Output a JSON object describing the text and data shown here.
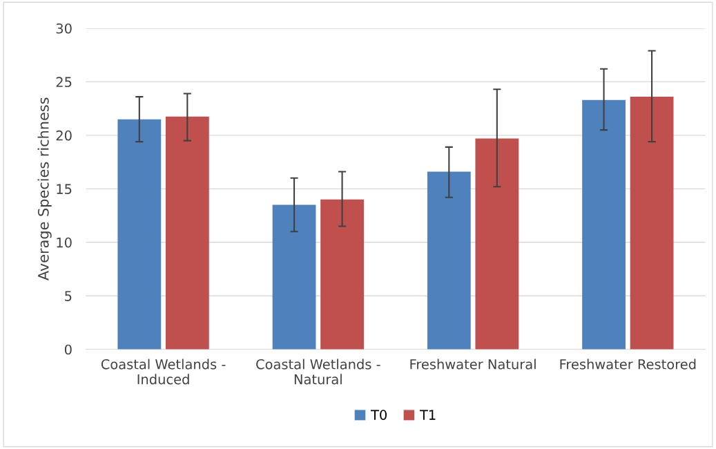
{
  "chart_data": {
    "type": "bar",
    "ylabel": "Average Species richness",
    "categories": [
      "Coastal Wetlands -\nInduced",
      "Coastal Wetlands -\nNatural",
      "Freshwater Natural",
      "Freshwater Restored"
    ],
    "series": [
      {
        "name": "T0",
        "color": "#4f81bd",
        "values": [
          21.5,
          13.5,
          16.6,
          23.3
        ],
        "errors": [
          [
            19.4,
            23.6
          ],
          [
            11.0,
            16.0
          ],
          [
            14.2,
            18.9
          ],
          [
            20.5,
            26.2
          ]
        ]
      },
      {
        "name": "T1",
        "color": "#c0504d",
        "values": [
          21.75,
          14.0,
          19.7,
          23.6
        ],
        "errors": [
          [
            19.5,
            23.9
          ],
          [
            11.5,
            16.6
          ],
          [
            15.2,
            24.3
          ],
          [
            19.4,
            27.9
          ]
        ]
      }
    ],
    "ylim": [
      0,
      30
    ],
    "yticks": [
      0,
      5,
      10,
      15,
      20,
      25,
      30
    ],
    "grid": "y",
    "legend": "bottom"
  }
}
